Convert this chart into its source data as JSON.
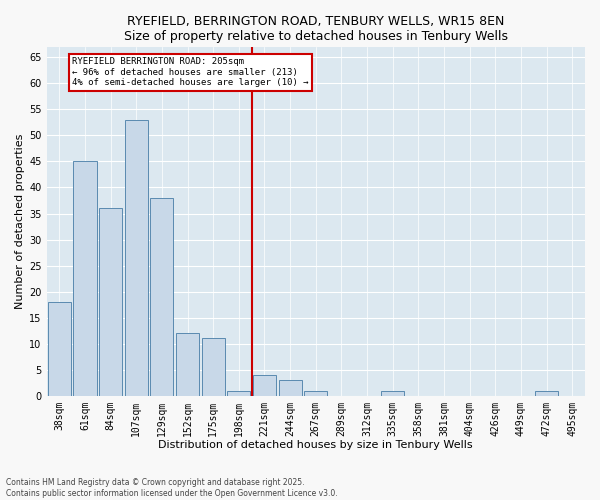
{
  "title": "RYEFIELD, BERRINGTON ROAD, TENBURY WELLS, WR15 8EN",
  "subtitle": "Size of property relative to detached houses in Tenbury Wells",
  "xlabel": "Distribution of detached houses by size in Tenbury Wells",
  "ylabel": "Number of detached properties",
  "categories": [
    "38sqm",
    "61sqm",
    "84sqm",
    "107sqm",
    "129sqm",
    "152sqm",
    "175sqm",
    "198sqm",
    "221sqm",
    "244sqm",
    "267sqm",
    "289sqm",
    "312sqm",
    "335sqm",
    "358sqm",
    "381sqm",
    "404sqm",
    "426sqm",
    "449sqm",
    "472sqm",
    "495sqm"
  ],
  "values": [
    18,
    45,
    36,
    53,
    38,
    12,
    11,
    1,
    4,
    3,
    1,
    0,
    0,
    1,
    0,
    0,
    0,
    0,
    0,
    1,
    0
  ],
  "bar_color": "#c8d8e8",
  "bar_edge_color": "#5a8ab0",
  "vline_color": "#cc0000",
  "vline_x_index": 7.5,
  "annotation_title": "RYEFIELD BERRINGTON ROAD: 205sqm",
  "annotation_line1": "← 96% of detached houses are smaller (213)",
  "annotation_line2": "4% of semi-detached houses are larger (10) →",
  "annotation_box_edgecolor": "#cc0000",
  "ylim": [
    0,
    67
  ],
  "yticks": [
    0,
    5,
    10,
    15,
    20,
    25,
    30,
    35,
    40,
    45,
    50,
    55,
    60,
    65
  ],
  "plot_bg_color": "#dce8f0",
  "fig_bg_color": "#f8f8f8",
  "title_fontsize": 9,
  "subtitle_fontsize": 8,
  "ylabel_fontsize": 8,
  "xlabel_fontsize": 8,
  "tick_fontsize": 7,
  "footer_line1": "Contains HM Land Registry data © Crown copyright and database right 2025.",
  "footer_line2": "Contains public sector information licensed under the Open Government Licence v3.0."
}
